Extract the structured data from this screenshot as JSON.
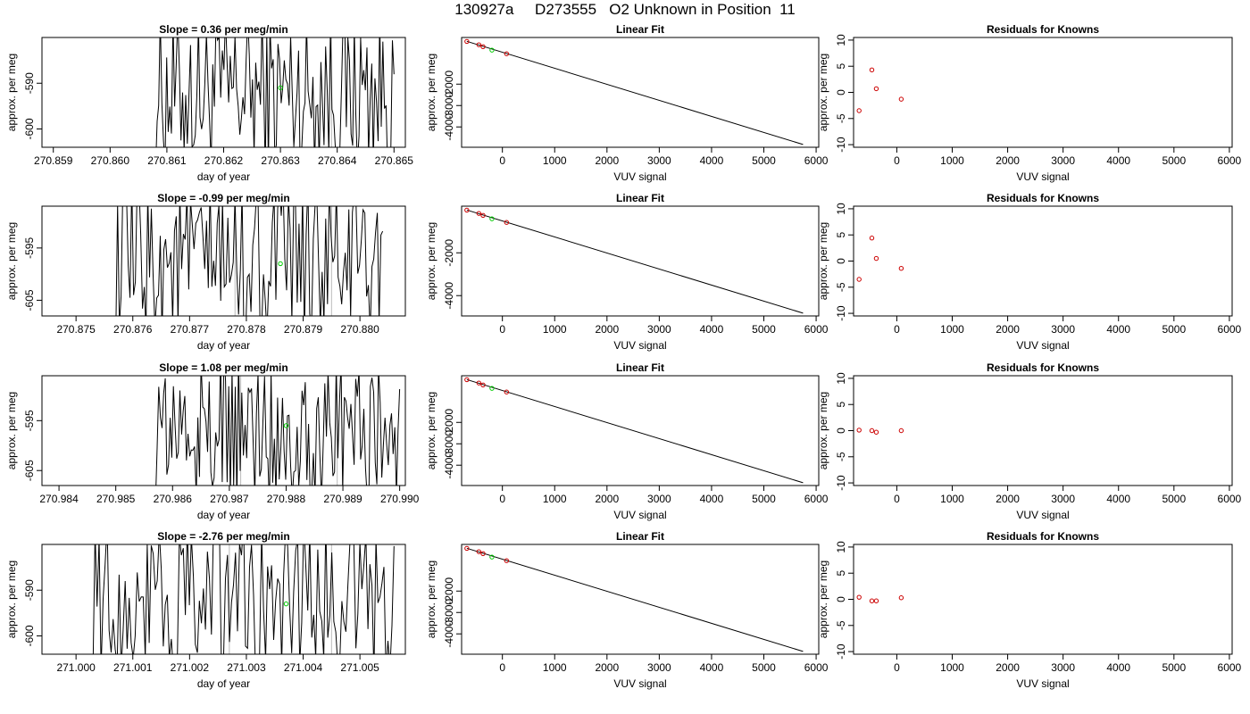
{
  "figure_title": "130927a     D273555   O2 Unknown in Position  11",
  "colors": {
    "trace": "#000000",
    "unknown_point": "#00cc00",
    "known_point": "#cc0000",
    "axis": "#000000",
    "vline": "#bbbbbb"
  },
  "chart_data": [
    {
      "type": "line",
      "panel": "trace",
      "row": 1,
      "title": "Slope =  0.36  per meg/min",
      "xlabel": "day of year",
      "ylabel": "approx. per meg",
      "xlim": [
        270.8588,
        270.8652
      ],
      "ylim": [
        -604,
        -580
      ],
      "xticks": [
        "270.859",
        "270.860",
        "270.861",
        "270.862",
        "270.863",
        "270.864",
        "270.865"
      ],
      "yticks": [
        "-600",
        "-590"
      ],
      "trace_start": 270.8608,
      "trace_end": 270.865,
      "unknown_point": {
        "x": 270.863,
        "y": -591
      },
      "vlines": [
        270.8639
      ]
    },
    {
      "type": "line",
      "panel": "fit",
      "row": 1,
      "title": "Linear Fit",
      "xlabel": "VUV signal",
      "ylabel": "approx. per meg",
      "xlim": [
        -780,
        6050
      ],
      "ylim": [
        -4950,
        180
      ],
      "xticks": [
        "0",
        "1000",
        "2000",
        "3000",
        "4000",
        "5000",
        "6000"
      ],
      "yticks": [
        "-2000",
        "-3000",
        "-4000"
      ],
      "fit_line": [
        [
          -680,
          0
        ],
        [
          5750,
          -4820
        ]
      ],
      "knowns": [
        {
          "x": -680,
          "y": -5
        },
        {
          "x": -450,
          "y": -160
        },
        {
          "x": -370,
          "y": -250
        },
        {
          "x": 80,
          "y": -580
        }
      ],
      "unknown_point": {
        "x": -200,
        "y": -410
      }
    },
    {
      "type": "scatter",
      "panel": "residuals",
      "row": 1,
      "title": "Residuals for Knowns",
      "xlabel": "VUV signal",
      "ylabel": "approx. per meg",
      "xlim": [
        -780,
        6050
      ],
      "ylim": [
        -10.5,
        10.5
      ],
      "xticks": [
        "0",
        "1000",
        "2000",
        "3000",
        "4000",
        "5000",
        "6000"
      ],
      "yticks": [
        "-10",
        "-5",
        "0",
        "5",
        "10"
      ],
      "points": [
        {
          "x": -680,
          "y": -3.5
        },
        {
          "x": -450,
          "y": 4.3
        },
        {
          "x": -370,
          "y": 0.7
        },
        {
          "x": 80,
          "y": -1.3
        }
      ]
    },
    {
      "type": "line",
      "panel": "trace",
      "row": 2,
      "title": "Slope =  -0.99  per meg/min",
      "xlabel": "day of year",
      "ylabel": "approx. per meg",
      "xlim": [
        270.8744,
        270.8808
      ],
      "ylim": [
        -608,
        -587
      ],
      "xticks": [
        "270.875",
        "270.876",
        "270.877",
        "270.878",
        "270.879",
        "270.880"
      ],
      "yticks": [
        "-605",
        "-595"
      ],
      "trace_start": 270.8757,
      "trace_end": 270.8804,
      "unknown_point": {
        "x": 270.8786,
        "y": -598
      },
      "vlines": [
        270.8778,
        270.8795
      ]
    },
    {
      "type": "line",
      "panel": "fit",
      "row": 2,
      "title": "Linear Fit",
      "xlabel": "VUV signal",
      "ylabel": "approx. per meg",
      "xlim": [
        -780,
        6050
      ],
      "ylim": [
        -4950,
        180
      ],
      "xticks": [
        "0",
        "1000",
        "2000",
        "3000",
        "4000",
        "5000",
        "6000"
      ],
      "yticks": [
        "-2000",
        "-4000"
      ],
      "fit_line": [
        [
          -680,
          0
        ],
        [
          5750,
          -4820
        ]
      ],
      "knowns": [
        {
          "x": -680,
          "y": -5
        },
        {
          "x": -450,
          "y": -160
        },
        {
          "x": -370,
          "y": -250
        },
        {
          "x": 80,
          "y": -580
        }
      ],
      "unknown_point": {
        "x": -200,
        "y": -410
      }
    },
    {
      "type": "scatter",
      "panel": "residuals",
      "row": 2,
      "title": "Residuals for Knowns",
      "xlabel": "VUV signal",
      "ylabel": "approx. per meg",
      "xlim": [
        -780,
        6050
      ],
      "ylim": [
        -10.5,
        10.5
      ],
      "xticks": [
        "0",
        "1000",
        "2000",
        "3000",
        "4000",
        "5000",
        "6000"
      ],
      "yticks": [
        "-10",
        "-5",
        "0",
        "5",
        "10"
      ],
      "points": [
        {
          "x": -680,
          "y": -3.5
        },
        {
          "x": -450,
          "y": 4.4
        },
        {
          "x": -370,
          "y": 0.5
        },
        {
          "x": 80,
          "y": -1.4
        }
      ]
    },
    {
      "type": "line",
      "panel": "trace",
      "row": 3,
      "title": "Slope =  1.08  per meg/min",
      "xlabel": "day of year",
      "ylabel": "approx. per meg",
      "xlim": [
        270.9837,
        270.9901
      ],
      "ylim": [
        -608,
        -586
      ],
      "xticks": [
        "270.984",
        "270.985",
        "270.986",
        "270.987",
        "270.988",
        "270.989",
        "270.990"
      ],
      "yticks": [
        "-605",
        "-595"
      ],
      "trace_start": 270.9857,
      "trace_end": 270.99,
      "unknown_point": {
        "x": 270.988,
        "y": -596
      },
      "vlines": [
        270.9872,
        270.9889
      ]
    },
    {
      "type": "line",
      "panel": "fit",
      "row": 3,
      "title": "Linear Fit",
      "xlabel": "VUV signal",
      "ylabel": "approx. per meg",
      "xlim": [
        -780,
        6050
      ],
      "ylim": [
        -4950,
        180
      ],
      "xticks": [
        "0",
        "1000",
        "2000",
        "3000",
        "4000",
        "5000",
        "6000"
      ],
      "yticks": [
        "-2000",
        "-3000",
        "-4000"
      ],
      "fit_line": [
        [
          -680,
          0
        ],
        [
          5750,
          -4820
        ]
      ],
      "knowns": [
        {
          "x": -680,
          "y": -5
        },
        {
          "x": -450,
          "y": -160
        },
        {
          "x": -370,
          "y": -250
        },
        {
          "x": 80,
          "y": -580
        }
      ],
      "unknown_point": {
        "x": -200,
        "y": -410
      }
    },
    {
      "type": "scatter",
      "panel": "residuals",
      "row": 3,
      "title": "Residuals for Knowns",
      "xlabel": "VUV signal",
      "ylabel": "approx. per meg",
      "xlim": [
        -780,
        6050
      ],
      "ylim": [
        -10.5,
        10.5
      ],
      "xticks": [
        "0",
        "1000",
        "2000",
        "3000",
        "4000",
        "5000",
        "6000"
      ],
      "yticks": [
        "-10",
        "-5",
        "0",
        "5",
        "10"
      ],
      "points": [
        {
          "x": -680,
          "y": 0.1
        },
        {
          "x": -450,
          "y": 0.0
        },
        {
          "x": -370,
          "y": -0.3
        },
        {
          "x": 80,
          "y": 0.0
        }
      ]
    },
    {
      "type": "line",
      "panel": "trace",
      "row": 4,
      "title": "Slope =  -2.76  per meg/min",
      "xlabel": "day of year",
      "ylabel": "approx. per meg",
      "xlim": [
        270.9994,
        271.0058
      ],
      "ylim": [
        -604,
        -580
      ],
      "xticks": [
        "271.000",
        "271.001",
        "271.002",
        "271.003",
        "271.004",
        "271.005"
      ],
      "yticks": [
        "-600",
        "-590"
      ],
      "trace_start": 271.0003,
      "trace_end": 271.0056,
      "unknown_point": {
        "x": 271.0037,
        "y": -593
      },
      "vlines": [
        271.0027,
        271.0045
      ]
    },
    {
      "type": "line",
      "panel": "fit",
      "row": 4,
      "title": "Linear Fit",
      "xlabel": "VUV signal",
      "ylabel": "approx. per meg",
      "xlim": [
        -780,
        6050
      ],
      "ylim": [
        -4950,
        180
      ],
      "xticks": [
        "0",
        "1000",
        "2000",
        "3000",
        "4000",
        "5000",
        "6000"
      ],
      "yticks": [
        "-2000",
        "-3000",
        "-4000"
      ],
      "fit_line": [
        [
          -680,
          0
        ],
        [
          5750,
          -4820
        ]
      ],
      "knowns": [
        {
          "x": -680,
          "y": -5
        },
        {
          "x": -450,
          "y": -160
        },
        {
          "x": -370,
          "y": -250
        },
        {
          "x": 80,
          "y": -580
        }
      ],
      "unknown_point": {
        "x": -200,
        "y": -410
      }
    },
    {
      "type": "scatter",
      "panel": "residuals",
      "row": 4,
      "title": "Residuals for Knowns",
      "xlabel": "VUV signal",
      "ylabel": "approx. per meg",
      "xlim": [
        -780,
        6050
      ],
      "ylim": [
        -10.5,
        10.5
      ],
      "xticks": [
        "0",
        "1000",
        "2000",
        "3000",
        "4000",
        "5000",
        "6000"
      ],
      "yticks": [
        "-10",
        "-5",
        "0",
        "5",
        "10"
      ],
      "points": [
        {
          "x": -680,
          "y": 0.4
        },
        {
          "x": -450,
          "y": -0.3
        },
        {
          "x": -370,
          "y": -0.3
        },
        {
          "x": 80,
          "y": 0.3
        }
      ]
    }
  ]
}
